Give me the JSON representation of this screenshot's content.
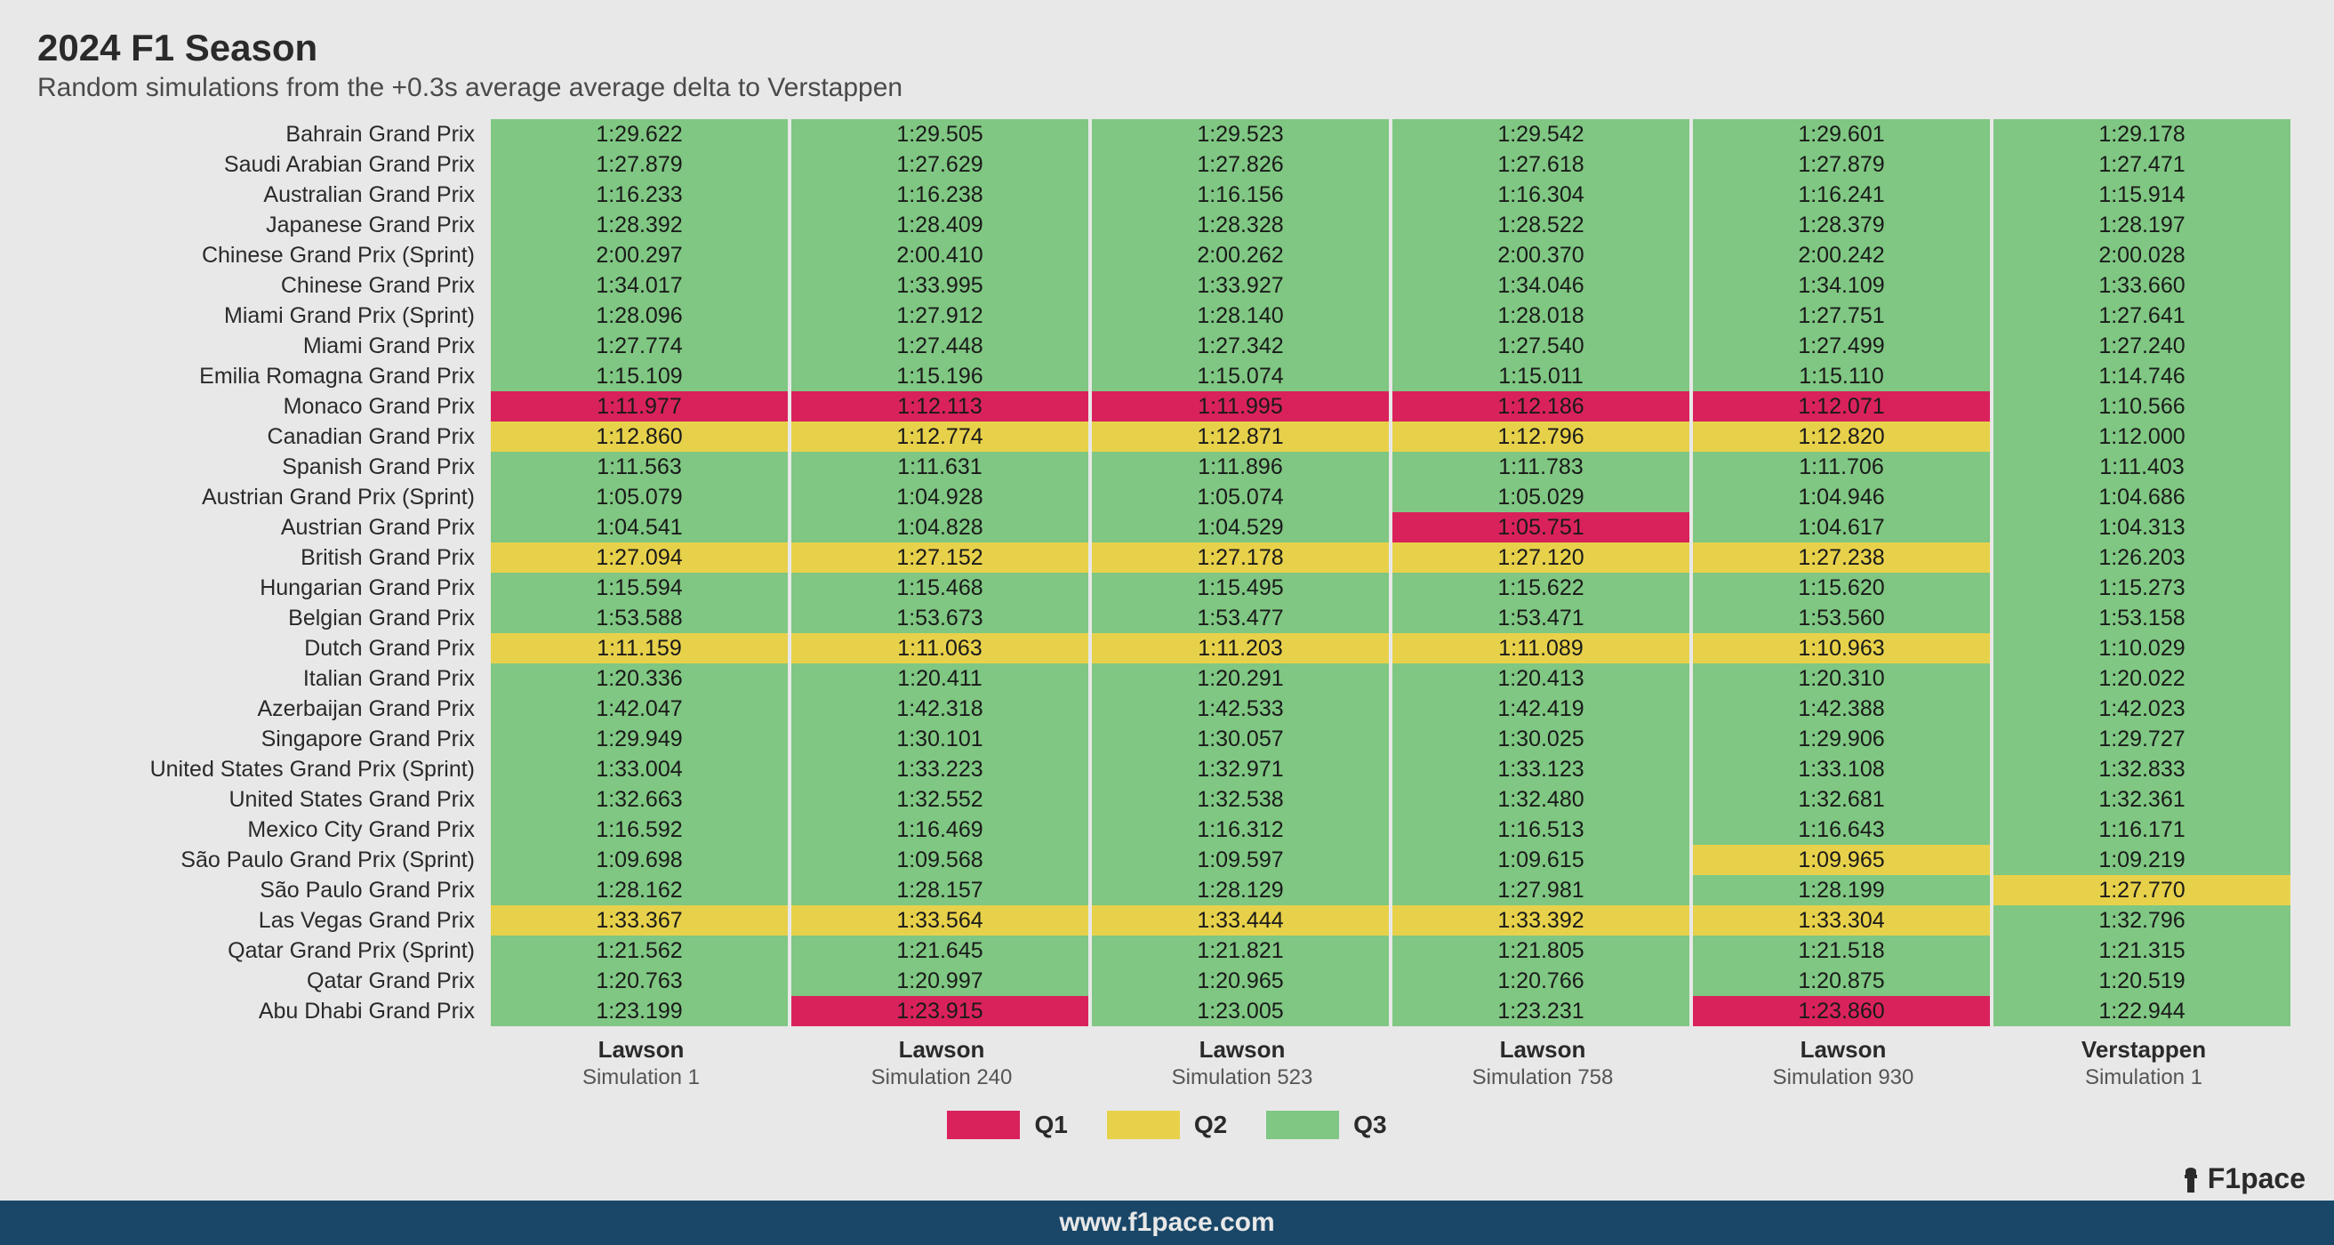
{
  "title": "2024 F1 Season",
  "subtitle": "Random simulations from the +0.3s average average delta to Verstappen",
  "footer_url": "www.f1pace.com",
  "brand_text": "F1pace",
  "colors": {
    "q1": "#d9225b",
    "q2": "#e8d14a",
    "q3": "#7fc782",
    "bg": "#e8e8e8",
    "footer": "#1a4768"
  },
  "legend": [
    {
      "label": "Q1",
      "color_key": "q1"
    },
    {
      "label": "Q2",
      "color_key": "q2"
    },
    {
      "label": "Q3",
      "color_key": "q3"
    }
  ],
  "columns": [
    {
      "top": "Lawson",
      "bottom": "Simulation 1"
    },
    {
      "top": "Lawson",
      "bottom": "Simulation 240"
    },
    {
      "top": "Lawson",
      "bottom": "Simulation 523"
    },
    {
      "top": "Lawson",
      "bottom": "Simulation 758"
    },
    {
      "top": "Lawson",
      "bottom": "Simulation 930"
    },
    {
      "top": "Verstappen",
      "bottom": "Simulation 1"
    }
  ],
  "rows": [
    {
      "label": "Bahrain Grand Prix",
      "cells": [
        {
          "v": "1:29.622",
          "c": "q3"
        },
        {
          "v": "1:29.505",
          "c": "q3"
        },
        {
          "v": "1:29.523",
          "c": "q3"
        },
        {
          "v": "1:29.542",
          "c": "q3"
        },
        {
          "v": "1:29.601",
          "c": "q3"
        },
        {
          "v": "1:29.178",
          "c": "q3"
        }
      ]
    },
    {
      "label": "Saudi Arabian Grand Prix",
      "cells": [
        {
          "v": "1:27.879",
          "c": "q3"
        },
        {
          "v": "1:27.629",
          "c": "q3"
        },
        {
          "v": "1:27.826",
          "c": "q3"
        },
        {
          "v": "1:27.618",
          "c": "q3"
        },
        {
          "v": "1:27.879",
          "c": "q3"
        },
        {
          "v": "1:27.471",
          "c": "q3"
        }
      ]
    },
    {
      "label": "Australian Grand Prix",
      "cells": [
        {
          "v": "1:16.233",
          "c": "q3"
        },
        {
          "v": "1:16.238",
          "c": "q3"
        },
        {
          "v": "1:16.156",
          "c": "q3"
        },
        {
          "v": "1:16.304",
          "c": "q3"
        },
        {
          "v": "1:16.241",
          "c": "q3"
        },
        {
          "v": "1:15.914",
          "c": "q3"
        }
      ]
    },
    {
      "label": "Japanese Grand Prix",
      "cells": [
        {
          "v": "1:28.392",
          "c": "q3"
        },
        {
          "v": "1:28.409",
          "c": "q3"
        },
        {
          "v": "1:28.328",
          "c": "q3"
        },
        {
          "v": "1:28.522",
          "c": "q3"
        },
        {
          "v": "1:28.379",
          "c": "q3"
        },
        {
          "v": "1:28.197",
          "c": "q3"
        }
      ]
    },
    {
      "label": "Chinese Grand Prix (Sprint)",
      "cells": [
        {
          "v": "2:00.297",
          "c": "q3"
        },
        {
          "v": "2:00.410",
          "c": "q3"
        },
        {
          "v": "2:00.262",
          "c": "q3"
        },
        {
          "v": "2:00.370",
          "c": "q3"
        },
        {
          "v": "2:00.242",
          "c": "q3"
        },
        {
          "v": "2:00.028",
          "c": "q3"
        }
      ]
    },
    {
      "label": "Chinese Grand Prix",
      "cells": [
        {
          "v": "1:34.017",
          "c": "q3"
        },
        {
          "v": "1:33.995",
          "c": "q3"
        },
        {
          "v": "1:33.927",
          "c": "q3"
        },
        {
          "v": "1:34.046",
          "c": "q3"
        },
        {
          "v": "1:34.109",
          "c": "q3"
        },
        {
          "v": "1:33.660",
          "c": "q3"
        }
      ]
    },
    {
      "label": "Miami Grand Prix (Sprint)",
      "cells": [
        {
          "v": "1:28.096",
          "c": "q3"
        },
        {
          "v": "1:27.912",
          "c": "q3"
        },
        {
          "v": "1:28.140",
          "c": "q3"
        },
        {
          "v": "1:28.018",
          "c": "q3"
        },
        {
          "v": "1:27.751",
          "c": "q3"
        },
        {
          "v": "1:27.641",
          "c": "q3"
        }
      ]
    },
    {
      "label": "Miami Grand Prix",
      "cells": [
        {
          "v": "1:27.774",
          "c": "q3"
        },
        {
          "v": "1:27.448",
          "c": "q3"
        },
        {
          "v": "1:27.342",
          "c": "q3"
        },
        {
          "v": "1:27.540",
          "c": "q3"
        },
        {
          "v": "1:27.499",
          "c": "q3"
        },
        {
          "v": "1:27.240",
          "c": "q3"
        }
      ]
    },
    {
      "label": "Emilia Romagna Grand Prix",
      "cells": [
        {
          "v": "1:15.109",
          "c": "q3"
        },
        {
          "v": "1:15.196",
          "c": "q3"
        },
        {
          "v": "1:15.074",
          "c": "q3"
        },
        {
          "v": "1:15.011",
          "c": "q3"
        },
        {
          "v": "1:15.110",
          "c": "q3"
        },
        {
          "v": "1:14.746",
          "c": "q3"
        }
      ]
    },
    {
      "label": "Monaco Grand Prix",
      "cells": [
        {
          "v": "1:11.977",
          "c": "q1"
        },
        {
          "v": "1:12.113",
          "c": "q1"
        },
        {
          "v": "1:11.995",
          "c": "q1"
        },
        {
          "v": "1:12.186",
          "c": "q1"
        },
        {
          "v": "1:12.071",
          "c": "q1"
        },
        {
          "v": "1:10.566",
          "c": "q3"
        }
      ]
    },
    {
      "label": "Canadian Grand Prix",
      "cells": [
        {
          "v": "1:12.860",
          "c": "q2"
        },
        {
          "v": "1:12.774",
          "c": "q2"
        },
        {
          "v": "1:12.871",
          "c": "q2"
        },
        {
          "v": "1:12.796",
          "c": "q2"
        },
        {
          "v": "1:12.820",
          "c": "q2"
        },
        {
          "v": "1:12.000",
          "c": "q3"
        }
      ]
    },
    {
      "label": "Spanish Grand Prix",
      "cells": [
        {
          "v": "1:11.563",
          "c": "q3"
        },
        {
          "v": "1:11.631",
          "c": "q3"
        },
        {
          "v": "1:11.896",
          "c": "q3"
        },
        {
          "v": "1:11.783",
          "c": "q3"
        },
        {
          "v": "1:11.706",
          "c": "q3"
        },
        {
          "v": "1:11.403",
          "c": "q3"
        }
      ]
    },
    {
      "label": "Austrian Grand Prix (Sprint)",
      "cells": [
        {
          "v": "1:05.079",
          "c": "q3"
        },
        {
          "v": "1:04.928",
          "c": "q3"
        },
        {
          "v": "1:05.074",
          "c": "q3"
        },
        {
          "v": "1:05.029",
          "c": "q3"
        },
        {
          "v": "1:04.946",
          "c": "q3"
        },
        {
          "v": "1:04.686",
          "c": "q3"
        }
      ]
    },
    {
      "label": "Austrian Grand Prix",
      "cells": [
        {
          "v": "1:04.541",
          "c": "q3"
        },
        {
          "v": "1:04.828",
          "c": "q3"
        },
        {
          "v": "1:04.529",
          "c": "q3"
        },
        {
          "v": "1:05.751",
          "c": "q1"
        },
        {
          "v": "1:04.617",
          "c": "q3"
        },
        {
          "v": "1:04.313",
          "c": "q3"
        }
      ]
    },
    {
      "label": "British Grand Prix",
      "cells": [
        {
          "v": "1:27.094",
          "c": "q2"
        },
        {
          "v": "1:27.152",
          "c": "q2"
        },
        {
          "v": "1:27.178",
          "c": "q2"
        },
        {
          "v": "1:27.120",
          "c": "q2"
        },
        {
          "v": "1:27.238",
          "c": "q2"
        },
        {
          "v": "1:26.203",
          "c": "q3"
        }
      ]
    },
    {
      "label": "Hungarian Grand Prix",
      "cells": [
        {
          "v": "1:15.594",
          "c": "q3"
        },
        {
          "v": "1:15.468",
          "c": "q3"
        },
        {
          "v": "1:15.495",
          "c": "q3"
        },
        {
          "v": "1:15.622",
          "c": "q3"
        },
        {
          "v": "1:15.620",
          "c": "q3"
        },
        {
          "v": "1:15.273",
          "c": "q3"
        }
      ]
    },
    {
      "label": "Belgian Grand Prix",
      "cells": [
        {
          "v": "1:53.588",
          "c": "q3"
        },
        {
          "v": "1:53.673",
          "c": "q3"
        },
        {
          "v": "1:53.477",
          "c": "q3"
        },
        {
          "v": "1:53.471",
          "c": "q3"
        },
        {
          "v": "1:53.560",
          "c": "q3"
        },
        {
          "v": "1:53.158",
          "c": "q3"
        }
      ]
    },
    {
      "label": "Dutch Grand Prix",
      "cells": [
        {
          "v": "1:11.159",
          "c": "q2"
        },
        {
          "v": "1:11.063",
          "c": "q2"
        },
        {
          "v": "1:11.203",
          "c": "q2"
        },
        {
          "v": "1:11.089",
          "c": "q2"
        },
        {
          "v": "1:10.963",
          "c": "q2"
        },
        {
          "v": "1:10.029",
          "c": "q3"
        }
      ]
    },
    {
      "label": "Italian Grand Prix",
      "cells": [
        {
          "v": "1:20.336",
          "c": "q3"
        },
        {
          "v": "1:20.411",
          "c": "q3"
        },
        {
          "v": "1:20.291",
          "c": "q3"
        },
        {
          "v": "1:20.413",
          "c": "q3"
        },
        {
          "v": "1:20.310",
          "c": "q3"
        },
        {
          "v": "1:20.022",
          "c": "q3"
        }
      ]
    },
    {
      "label": "Azerbaijan Grand Prix",
      "cells": [
        {
          "v": "1:42.047",
          "c": "q3"
        },
        {
          "v": "1:42.318",
          "c": "q3"
        },
        {
          "v": "1:42.533",
          "c": "q3"
        },
        {
          "v": "1:42.419",
          "c": "q3"
        },
        {
          "v": "1:42.388",
          "c": "q3"
        },
        {
          "v": "1:42.023",
          "c": "q3"
        }
      ]
    },
    {
      "label": "Singapore Grand Prix",
      "cells": [
        {
          "v": "1:29.949",
          "c": "q3"
        },
        {
          "v": "1:30.101",
          "c": "q3"
        },
        {
          "v": "1:30.057",
          "c": "q3"
        },
        {
          "v": "1:30.025",
          "c": "q3"
        },
        {
          "v": "1:29.906",
          "c": "q3"
        },
        {
          "v": "1:29.727",
          "c": "q3"
        }
      ]
    },
    {
      "label": "United States Grand Prix (Sprint)",
      "cells": [
        {
          "v": "1:33.004",
          "c": "q3"
        },
        {
          "v": "1:33.223",
          "c": "q3"
        },
        {
          "v": "1:32.971",
          "c": "q3"
        },
        {
          "v": "1:33.123",
          "c": "q3"
        },
        {
          "v": "1:33.108",
          "c": "q3"
        },
        {
          "v": "1:32.833",
          "c": "q3"
        }
      ]
    },
    {
      "label": "United States Grand Prix",
      "cells": [
        {
          "v": "1:32.663",
          "c": "q3"
        },
        {
          "v": "1:32.552",
          "c": "q3"
        },
        {
          "v": "1:32.538",
          "c": "q3"
        },
        {
          "v": "1:32.480",
          "c": "q3"
        },
        {
          "v": "1:32.681",
          "c": "q3"
        },
        {
          "v": "1:32.361",
          "c": "q3"
        }
      ]
    },
    {
      "label": "Mexico City Grand Prix",
      "cells": [
        {
          "v": "1:16.592",
          "c": "q3"
        },
        {
          "v": "1:16.469",
          "c": "q3"
        },
        {
          "v": "1:16.312",
          "c": "q3"
        },
        {
          "v": "1:16.513",
          "c": "q3"
        },
        {
          "v": "1:16.643",
          "c": "q3"
        },
        {
          "v": "1:16.171",
          "c": "q3"
        }
      ]
    },
    {
      "label": "São Paulo Grand Prix (Sprint)",
      "cells": [
        {
          "v": "1:09.698",
          "c": "q3"
        },
        {
          "v": "1:09.568",
          "c": "q3"
        },
        {
          "v": "1:09.597",
          "c": "q3"
        },
        {
          "v": "1:09.615",
          "c": "q3"
        },
        {
          "v": "1:09.965",
          "c": "q2"
        },
        {
          "v": "1:09.219",
          "c": "q3"
        }
      ]
    },
    {
      "label": "São Paulo Grand Prix",
      "cells": [
        {
          "v": "1:28.162",
          "c": "q3"
        },
        {
          "v": "1:28.157",
          "c": "q3"
        },
        {
          "v": "1:28.129",
          "c": "q3"
        },
        {
          "v": "1:27.981",
          "c": "q3"
        },
        {
          "v": "1:28.199",
          "c": "q3"
        },
        {
          "v": "1:27.770",
          "c": "q2"
        }
      ]
    },
    {
      "label": "Las Vegas Grand Prix",
      "cells": [
        {
          "v": "1:33.367",
          "c": "q2"
        },
        {
          "v": "1:33.564",
          "c": "q2"
        },
        {
          "v": "1:33.444",
          "c": "q2"
        },
        {
          "v": "1:33.392",
          "c": "q2"
        },
        {
          "v": "1:33.304",
          "c": "q2"
        },
        {
          "v": "1:32.796",
          "c": "q3"
        }
      ]
    },
    {
      "label": "Qatar Grand Prix (Sprint)",
      "cells": [
        {
          "v": "1:21.562",
          "c": "q3"
        },
        {
          "v": "1:21.645",
          "c": "q3"
        },
        {
          "v": "1:21.821",
          "c": "q3"
        },
        {
          "v": "1:21.805",
          "c": "q3"
        },
        {
          "v": "1:21.518",
          "c": "q3"
        },
        {
          "v": "1:21.315",
          "c": "q3"
        }
      ]
    },
    {
      "label": "Qatar Grand Prix",
      "cells": [
        {
          "v": "1:20.763",
          "c": "q3"
        },
        {
          "v": "1:20.997",
          "c": "q3"
        },
        {
          "v": "1:20.965",
          "c": "q3"
        },
        {
          "v": "1:20.766",
          "c": "q3"
        },
        {
          "v": "1:20.875",
          "c": "q3"
        },
        {
          "v": "1:20.519",
          "c": "q3"
        }
      ]
    },
    {
      "label": "Abu Dhabi Grand Prix",
      "cells": [
        {
          "v": "1:23.199",
          "c": "q3"
        },
        {
          "v": "1:23.915",
          "c": "q1"
        },
        {
          "v": "1:23.005",
          "c": "q3"
        },
        {
          "v": "1:23.231",
          "c": "q3"
        },
        {
          "v": "1:23.860",
          "c": "q1"
        },
        {
          "v": "1:22.944",
          "c": "q3"
        }
      ]
    }
  ]
}
